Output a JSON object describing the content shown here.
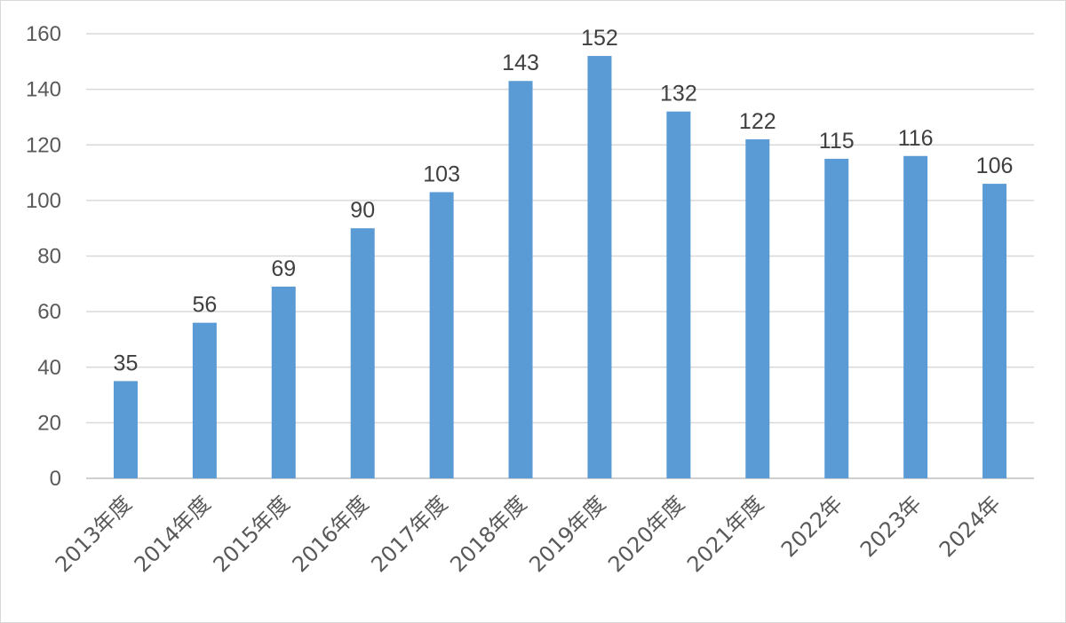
{
  "chart_data": {
    "type": "bar",
    "categories": [
      "2013年度",
      "2014年度",
      "2015年度",
      "2016年度",
      "2017年度",
      "2018年度",
      "2019年度",
      "2020年度",
      "2021年度",
      "2022年",
      "2023年",
      "2024年"
    ],
    "values": [
      35,
      56,
      69,
      90,
      103,
      143,
      152,
      132,
      122,
      115,
      116,
      106
    ],
    "ylim": [
      0,
      160
    ],
    "yticks": [
      0,
      20,
      40,
      60,
      80,
      100,
      120,
      140,
      160
    ],
    "grid": true,
    "data_labels": true,
    "legend": "none",
    "bar_color": "#5b9bd5"
  }
}
